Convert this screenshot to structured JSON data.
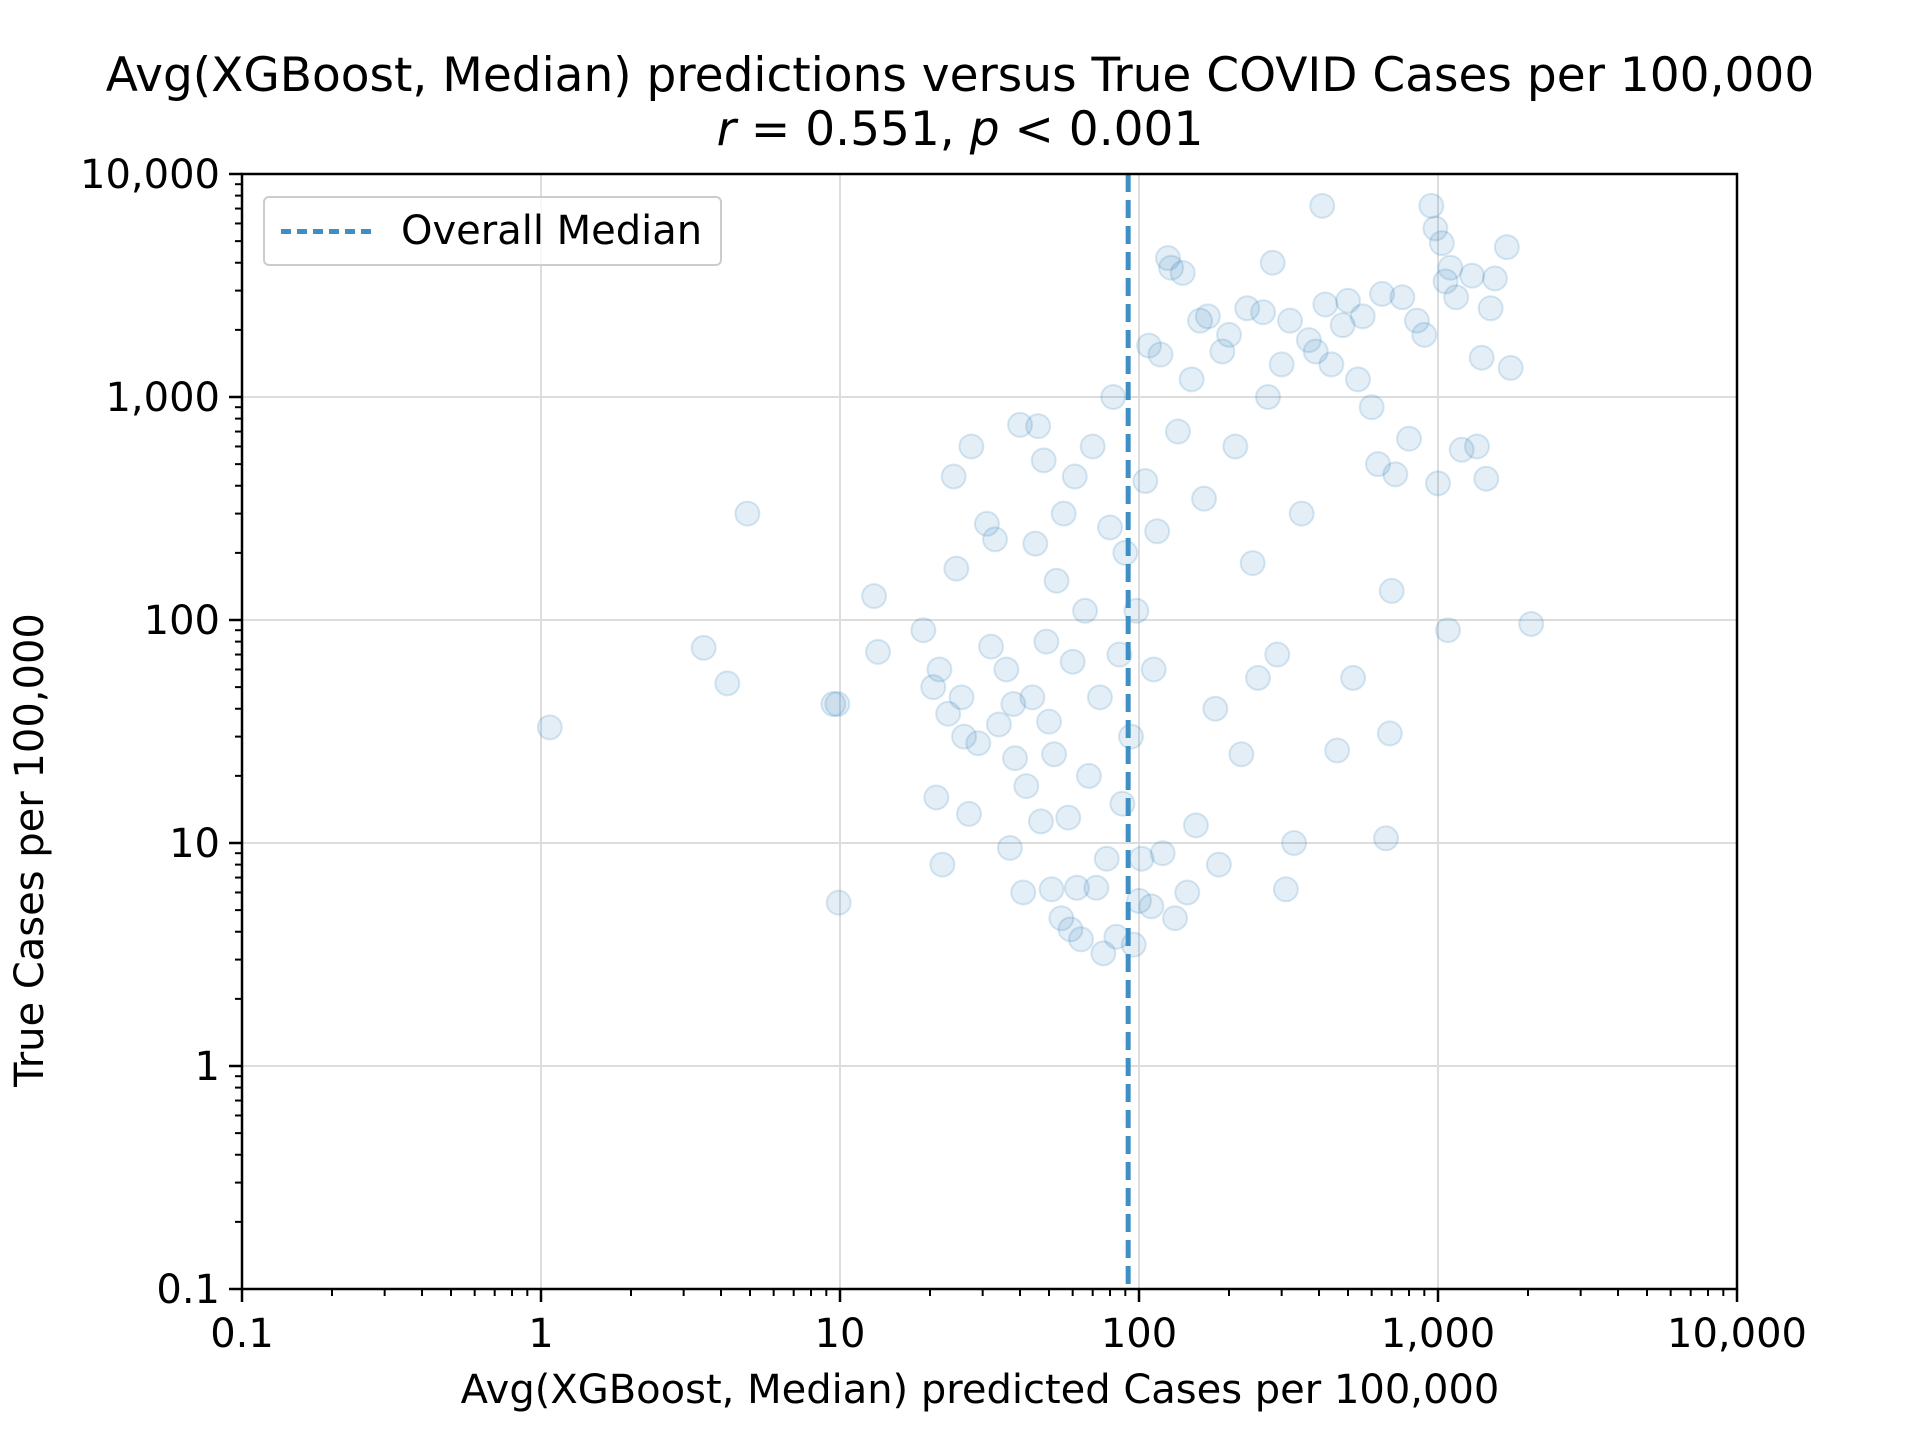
{
  "chart_data": {
    "type": "scatter",
    "title": "Avg(XGBoost, Median) predictions versus True COVID Cases per 100,000",
    "subtitle": {
      "r_symbol": "r",
      "r_text": " = 0.551, ",
      "p_symbol": "p",
      "p_text": " < 0.001"
    },
    "xlabel": "Avg(XGBoost, Median) predicted Cases per 100,000",
    "ylabel": "True Cases per 100,000",
    "xscale": "log",
    "yscale": "log",
    "xlim": [
      0.1,
      10000
    ],
    "ylim": [
      0.1,
      10000
    ],
    "xticks": [
      {
        "value": 0.1,
        "label": "0.1"
      },
      {
        "value": 1,
        "label": "1"
      },
      {
        "value": 10,
        "label": "10"
      },
      {
        "value": 100,
        "label": "100"
      },
      {
        "value": 1000,
        "label": "1,000"
      },
      {
        "value": 10000,
        "label": "10,000"
      }
    ],
    "yticks": [
      {
        "value": 0.1,
        "label": "0.1"
      },
      {
        "value": 1,
        "label": "1"
      },
      {
        "value": 10,
        "label": "10"
      },
      {
        "value": 100,
        "label": "100"
      },
      {
        "value": 1000,
        "label": "1,000"
      },
      {
        "value": 10000,
        "label": "10,000"
      }
    ],
    "grid": true,
    "legend": {
      "placement": "upper-left",
      "entries": [
        {
          "label": "Overall Median",
          "style": "dashed",
          "color": "#3f8fc4"
        }
      ]
    },
    "reference_line": {
      "name": "Overall Median",
      "orientation": "vertical",
      "x": 92
    },
    "series": [
      {
        "marker_color": "#1f77b4",
        "marker_alpha": 0.12,
        "points": [
          [
            1.07,
            33
          ],
          [
            3.5,
            75
          ],
          [
            4.2,
            52
          ],
          [
            4.9,
            300
          ],
          [
            9.5,
            42
          ],
          [
            9.8,
            42
          ],
          [
            9.9,
            5.4
          ],
          [
            13,
            128
          ],
          [
            13.4,
            72
          ],
          [
            19,
            90
          ],
          [
            20.5,
            50
          ],
          [
            21,
            16
          ],
          [
            21.5,
            60
          ],
          [
            22,
            8
          ],
          [
            23,
            38
          ],
          [
            24,
            440
          ],
          [
            24.5,
            170
          ],
          [
            25.5,
            45
          ],
          [
            26,
            30
          ],
          [
            27,
            13.5
          ],
          [
            27.5,
            600
          ],
          [
            29,
            28
          ],
          [
            31,
            270
          ],
          [
            32,
            76
          ],
          [
            33,
            230
          ],
          [
            34,
            34
          ],
          [
            36,
            60
          ],
          [
            37,
            9.5
          ],
          [
            38,
            42
          ],
          [
            38.5,
            24
          ],
          [
            40,
            750
          ],
          [
            41,
            6
          ],
          [
            42,
            18
          ],
          [
            44,
            45
          ],
          [
            45,
            220
          ],
          [
            46,
            740
          ],
          [
            47,
            12.5
          ],
          [
            48,
            520
          ],
          [
            49,
            80
          ],
          [
            50,
            35
          ],
          [
            51,
            6.2
          ],
          [
            52,
            25
          ],
          [
            53,
            150
          ],
          [
            55,
            4.6
          ],
          [
            56,
            300
          ],
          [
            58,
            13
          ],
          [
            59,
            4.1
          ],
          [
            60,
            65
          ],
          [
            61,
            440
          ],
          [
            62,
            6.3
          ],
          [
            64,
            3.7
          ],
          [
            66,
            110
          ],
          [
            68,
            20
          ],
          [
            70,
            600
          ],
          [
            72,
            6.3
          ],
          [
            74,
            45
          ],
          [
            76,
            3.2
          ],
          [
            78,
            8.5
          ],
          [
            80,
            260
          ],
          [
            82,
            1000
          ],
          [
            84,
            3.8
          ],
          [
            86,
            70
          ],
          [
            88,
            15
          ],
          [
            90,
            200
          ],
          [
            94,
            30
          ],
          [
            96,
            3.5
          ],
          [
            98,
            110
          ],
          [
            100,
            5.5
          ],
          [
            102,
            8.5
          ],
          [
            105,
            420
          ],
          [
            108,
            1700
          ],
          [
            110,
            5.2
          ],
          [
            112,
            60
          ],
          [
            115,
            250
          ],
          [
            118,
            1550
          ],
          [
            120,
            9
          ],
          [
            125,
            4200
          ],
          [
            128,
            3800
          ],
          [
            132,
            4.6
          ],
          [
            135,
            700
          ],
          [
            140,
            3600
          ],
          [
            145,
            6
          ],
          [
            150,
            1200
          ],
          [
            155,
            12
          ],
          [
            160,
            2200
          ],
          [
            165,
            350
          ],
          [
            170,
            2300
          ],
          [
            180,
            40
          ],
          [
            185,
            8
          ],
          [
            190,
            1600
          ],
          [
            200,
            1900
          ],
          [
            210,
            600
          ],
          [
            220,
            25
          ],
          [
            230,
            2500
          ],
          [
            240,
            180
          ],
          [
            250,
            55
          ],
          [
            260,
            2400
          ],
          [
            270,
            1000
          ],
          [
            280,
            4000
          ],
          [
            290,
            70
          ],
          [
            300,
            1400
          ],
          [
            310,
            6.2
          ],
          [
            320,
            2200
          ],
          [
            330,
            10
          ],
          [
            350,
            300
          ],
          [
            370,
            1800
          ],
          [
            390,
            1600
          ],
          [
            410,
            7200
          ],
          [
            420,
            2600
          ],
          [
            440,
            1400
          ],
          [
            460,
            26
          ],
          [
            480,
            2100
          ],
          [
            500,
            2700
          ],
          [
            520,
            55
          ],
          [
            540,
            1200
          ],
          [
            560,
            2300
          ],
          [
            600,
            900
          ],
          [
            630,
            500
          ],
          [
            650,
            2900
          ],
          [
            670,
            10.5
          ],
          [
            690,
            31
          ],
          [
            700,
            135
          ],
          [
            720,
            450
          ],
          [
            760,
            2800
          ],
          [
            800,
            650
          ],
          [
            850,
            2200
          ],
          [
            900,
            1900
          ],
          [
            950,
            7200
          ],
          [
            980,
            5700
          ],
          [
            1000,
            410
          ],
          [
            1030,
            4900
          ],
          [
            1060,
            3300
          ],
          [
            1080,
            90
          ],
          [
            1100,
            3800
          ],
          [
            1150,
            2800
          ],
          [
            1200,
            580
          ],
          [
            1300,
            3500
          ],
          [
            1350,
            600
          ],
          [
            1400,
            1500
          ],
          [
            1450,
            430
          ],
          [
            1500,
            2500
          ],
          [
            1550,
            3400
          ],
          [
            1700,
            4700
          ],
          [
            1750,
            1350
          ],
          [
            2050,
            96
          ]
        ]
      }
    ]
  }
}
